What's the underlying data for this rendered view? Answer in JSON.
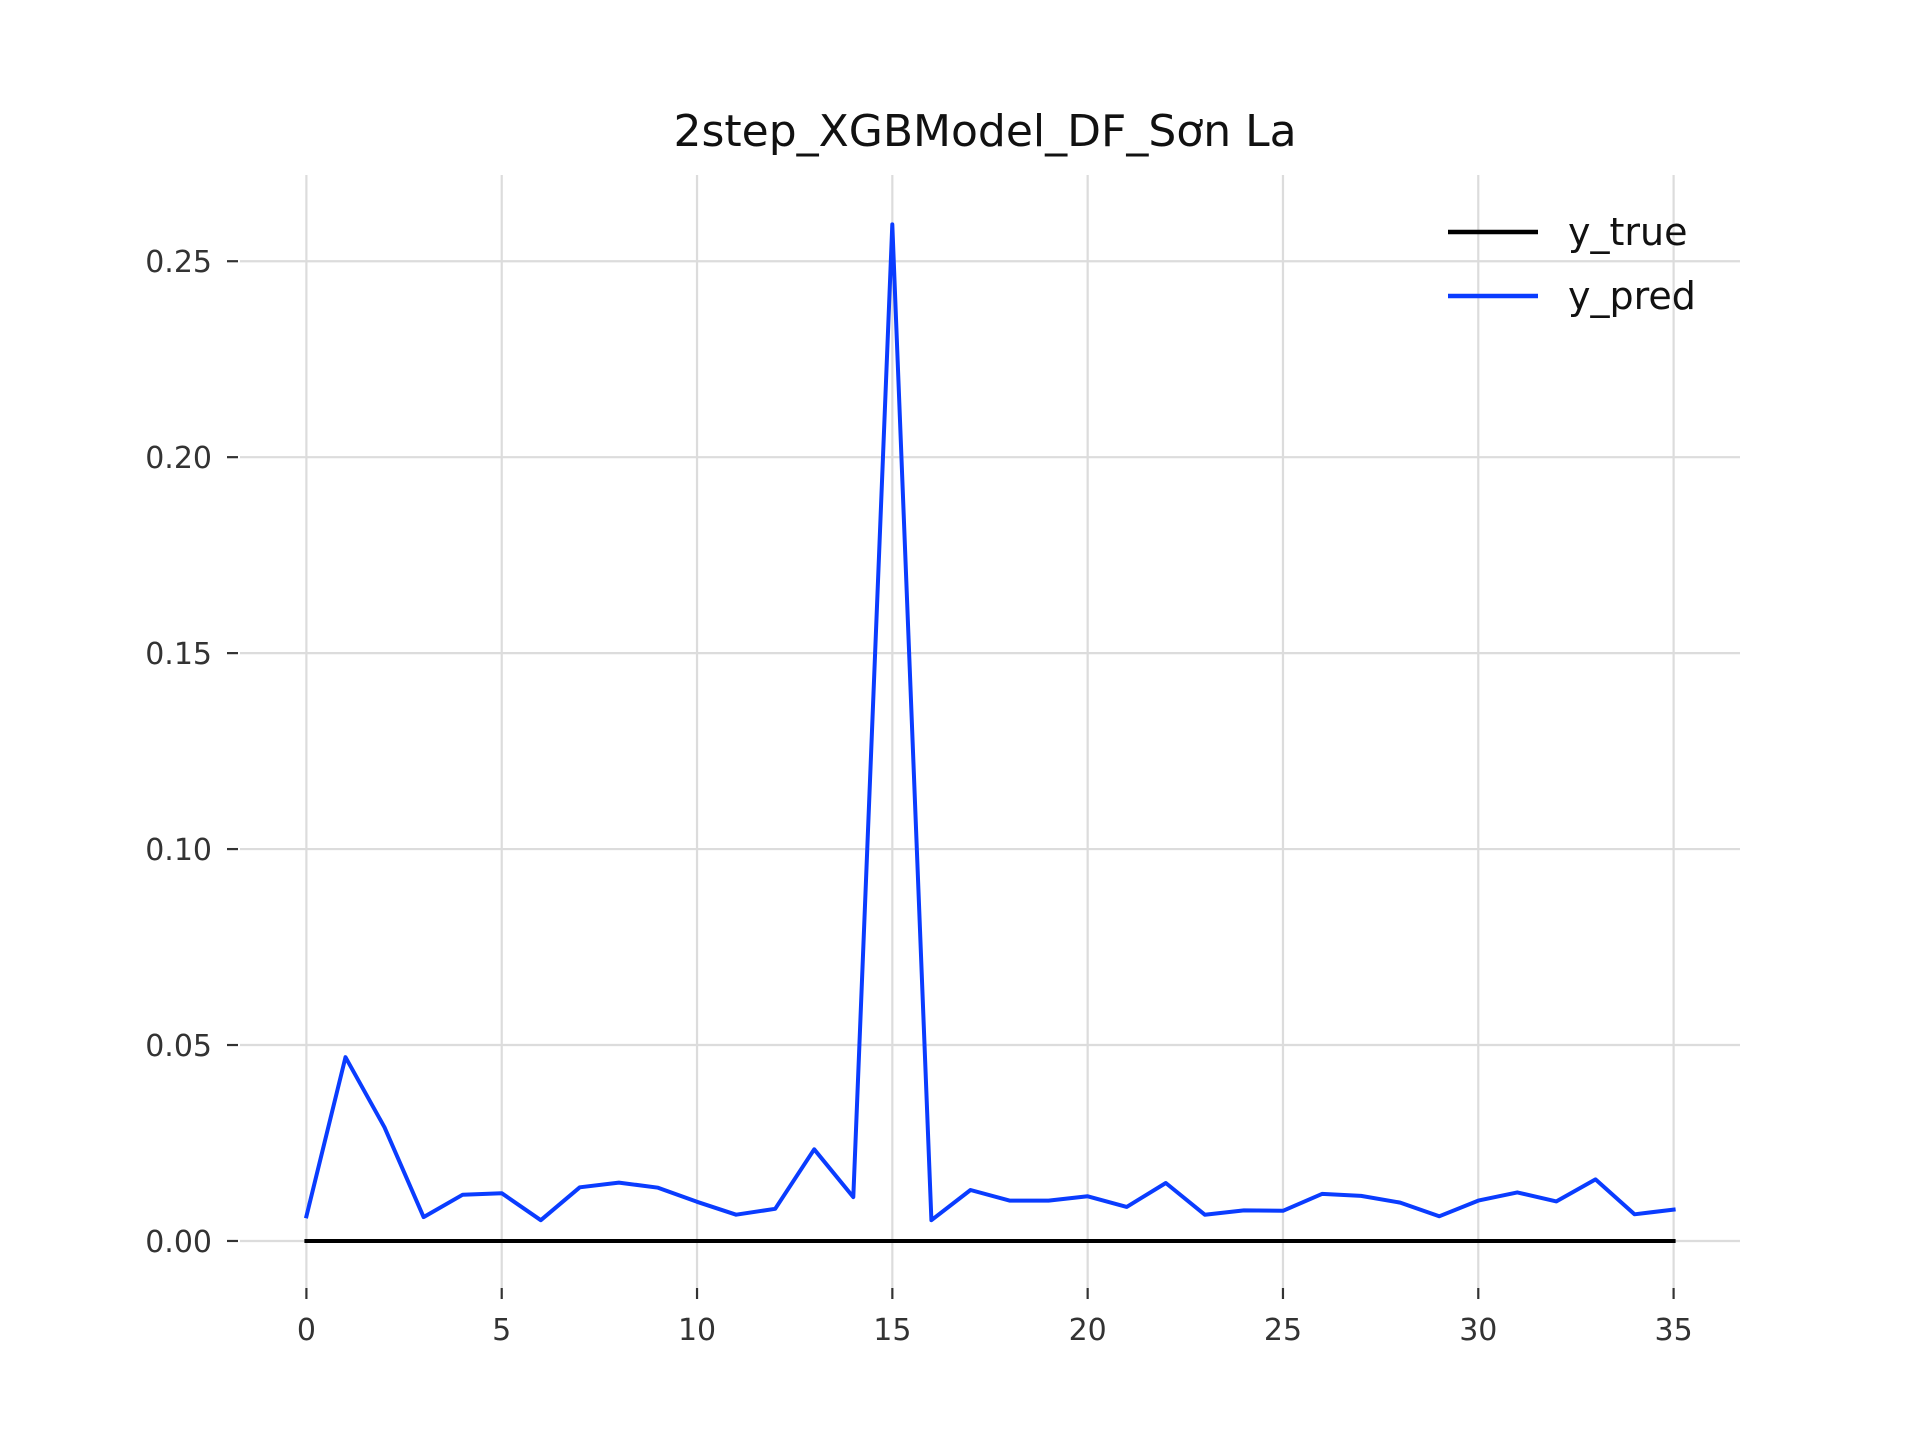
{
  "chart_data": {
    "type": "line",
    "title": "2step_XGBModel_DF_Sơn La",
    "xlabel": "",
    "ylabel": "",
    "xlim": [
      -1.7,
      36.7
    ],
    "ylim": [
      -0.012,
      0.272
    ],
    "x_ticks": [
      0,
      5,
      10,
      15,
      20,
      25,
      30,
      35
    ],
    "x_tick_labels": [
      "0",
      "5",
      "10",
      "15",
      "20",
      "25",
      "30",
      "35"
    ],
    "y_ticks": [
      0.0,
      0.05,
      0.1,
      0.15,
      0.2,
      0.25
    ],
    "y_tick_labels": [
      "0.00",
      "0.05",
      "0.10",
      "0.15",
      "0.20",
      "0.25"
    ],
    "grid": true,
    "legend_position": "top-right",
    "x": [
      0,
      1,
      2,
      3,
      4,
      5,
      6,
      7,
      8,
      9,
      10,
      11,
      12,
      13,
      14,
      15,
      16,
      17,
      18,
      19,
      20,
      21,
      22,
      23,
      24,
      25,
      26,
      27,
      28,
      29,
      30,
      31,
      32,
      33,
      34,
      35
    ],
    "series": [
      {
        "name": "y_true",
        "color": "#000000",
        "values": [
          0,
          0,
          0,
          0,
          0,
          0,
          0,
          0,
          0,
          0,
          0,
          0,
          0,
          0,
          0,
          0,
          0,
          0,
          0,
          0,
          0,
          0,
          0,
          0,
          0,
          0,
          0,
          0,
          0,
          0,
          0,
          0,
          0,
          0,
          0,
          0
        ]
      },
      {
        "name": "y_pred",
        "color": "#0a3cff",
        "values": [
          0.0063,
          0.0469,
          0.029,
          0.0061,
          0.0118,
          0.0122,
          0.0053,
          0.0137,
          0.0149,
          0.0136,
          0.01,
          0.0067,
          0.0082,
          0.0234,
          0.0112,
          0.2594,
          0.0053,
          0.013,
          0.0103,
          0.0103,
          0.0114,
          0.0087,
          0.0148,
          0.0067,
          0.0078,
          0.0077,
          0.012,
          0.0115,
          0.0098,
          0.0063,
          0.0103,
          0.0124,
          0.0101,
          0.0157,
          0.0068,
          0.008
        ]
      }
    ]
  }
}
